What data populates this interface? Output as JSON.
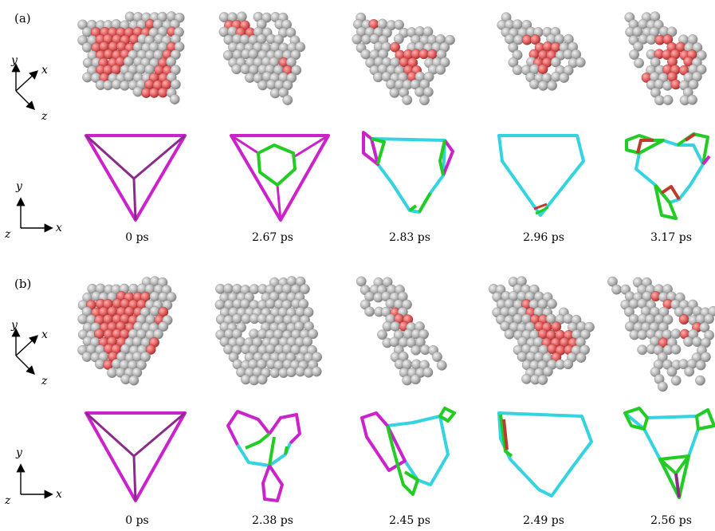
{
  "panels": [
    {
      "label": "(a)",
      "times": [
        "0 ps",
        "2.67 ps",
        "2.83 ps",
        "2.96 ps",
        "3.17 ps"
      ]
    },
    {
      "label": "(b)",
      "times": [
        "0 ps",
        "2.38 ps",
        "2.45 ps",
        "2.49 ps",
        "2.56 ps"
      ]
    }
  ],
  "axes": {
    "view3d": {
      "x": "x",
      "y": "y",
      "z": "z"
    },
    "view2d": {
      "x": "x",
      "y": "y",
      "z": "z"
    }
  },
  "colors": {
    "atom_gray": "#b4b4b4",
    "atom_red": "#e05a5a",
    "line_magenta": "#cc22cc",
    "line_purple": "#8a2a8a",
    "line_cyan": "#33d3e0",
    "line_green": "#22cc22",
    "line_red": "#c0392b"
  }
}
